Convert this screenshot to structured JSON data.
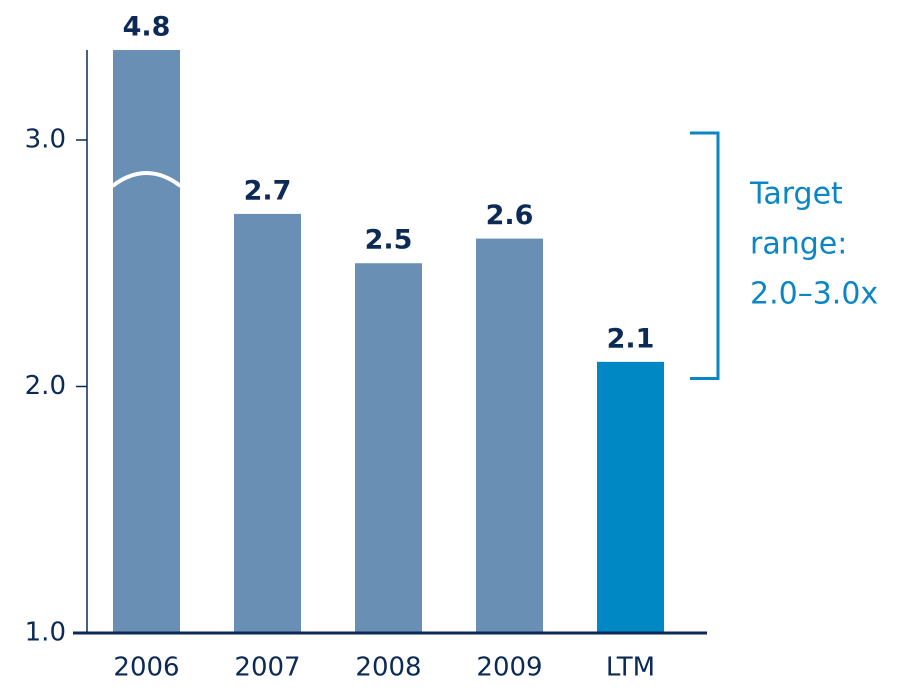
{
  "chart_data": {
    "type": "bar",
    "categories": [
      "2006",
      "2007",
      "2008",
      "2009",
      "LTM"
    ],
    "values": [
      4.8,
      2.7,
      2.5,
      2.6,
      2.1
    ],
    "colors": [
      "#6a8fb5",
      "#6a8fb5",
      "#6a8fb5",
      "#6a8fb5",
      "#0088c4"
    ],
    "ylim": [
      1.0,
      3.365
    ],
    "yticks": [
      {
        "value": 1.0,
        "label": "1.0"
      },
      {
        "value": 2.0,
        "label": "2.0"
      },
      {
        "value": 3.0,
        "label": "3.0"
      }
    ],
    "axis_break": true,
    "annotation": {
      "lines": [
        "Target",
        "range:",
        "2.0–3.0x"
      ],
      "range": [
        2.0,
        3.0
      ]
    }
  }
}
